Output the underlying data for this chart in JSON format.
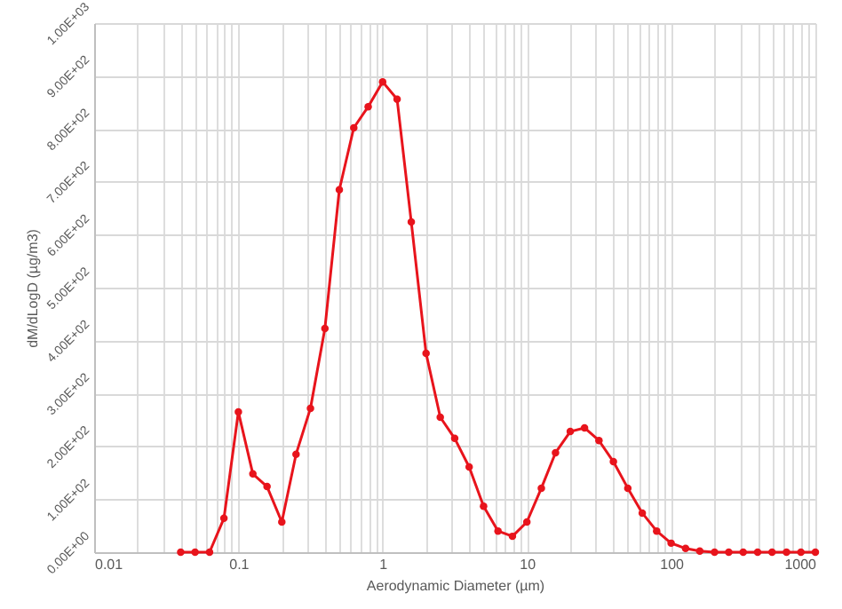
{
  "chart_data": {
    "type": "line",
    "xlabel": "Aerodynamic Diameter (µm)",
    "ylabel": "dM/dLogD (µg/m3)",
    "log": "x",
    "grid": true,
    "marker": "circle",
    "line_style": "solid",
    "x": [
      0.0398,
      0.0501,
      0.0631,
      0.0794,
      0.1,
      0.126,
      0.158,
      0.2,
      0.251,
      0.316,
      0.398,
      0.501,
      0.631,
      0.794,
      1,
      1.26,
      1.58,
      2,
      2.51,
      3.16,
      3.98,
      5.01,
      6.31,
      7.94,
      10,
      12.6,
      15.8,
      20,
      25.1,
      31.6,
      39.8,
      50.1,
      63.1,
      79.4,
      100,
      126,
      158,
      200,
      251,
      316,
      398,
      501,
      631,
      794,
      1000
    ],
    "series": [
      {
        "color": "#e8141c",
        "values": [
          0,
          0,
          0,
          64,
          265,
          148,
          124,
          57,
          185,
          272,
          423,
          685,
          802,
          842,
          889,
          856,
          624,
          376,
          255,
          215,
          161,
          87,
          40,
          30,
          57,
          121,
          188,
          228,
          235,
          211,
          171,
          121,
          74,
          40,
          17,
          7,
          2,
          0,
          0,
          0,
          0,
          0,
          0,
          0,
          0
        ]
      }
    ],
    "xlim": [
      0.01,
      1000
    ],
    "xticks": [
      0.01,
      {
        "value": 0.02,
        "label": null
      },
      {
        "value": 0.03,
        "label": null
      },
      {
        "value": 0.04,
        "label": null
      },
      {
        "value": 0.05,
        "label": null
      },
      {
        "value": 0.06,
        "label": null
      },
      {
        "value": 0.07,
        "label": null
      },
      {
        "value": 0.08,
        "label": null
      },
      {
        "value": 0.09,
        "label": null
      },
      0.1,
      {
        "value": 0.2,
        "label": null
      },
      {
        "value": 0.3,
        "label": null
      },
      {
        "value": 0.4,
        "label": null
      },
      {
        "value": 0.5,
        "label": null
      },
      {
        "value": 0.6,
        "label": null
      },
      {
        "value": 0.7,
        "label": null
      },
      {
        "value": 0.8,
        "label": null
      },
      {
        "value": 0.9,
        "label": null
      },
      1,
      {
        "value": 2,
        "label": null
      },
      {
        "value": 3,
        "label": null
      },
      {
        "value": 4,
        "label": null
      },
      {
        "value": 5,
        "label": null
      },
      {
        "value": 6,
        "label": null
      },
      {
        "value": 7,
        "label": null
      },
      {
        "value": 8,
        "label": null
      },
      {
        "value": 9,
        "label": null
      },
      10,
      {
        "value": 20,
        "label": null
      },
      {
        "value": 30,
        "label": null
      },
      {
        "value": 40,
        "label": null
      },
      {
        "value": 50,
        "label": null
      },
      {
        "value": 60,
        "label": null
      },
      {
        "value": 70,
        "label": null
      },
      {
        "value": 80,
        "label": null
      },
      {
        "value": 90,
        "label": null
      },
      100,
      {
        "value": 200,
        "label": null
      },
      {
        "value": 300,
        "label": null
      },
      {
        "value": 400,
        "label": null
      },
      {
        "value": 500,
        "label": null
      },
      {
        "value": 600,
        "label": null
      },
      {
        "value": 700,
        "label": null
      },
      {
        "value": 800,
        "label": null
      },
      {
        "value": 900,
        "label": null
      },
      1000
    ],
    "ylim": [
      0,
      1000
    ],
    "yticks": [
      {
        "value": 0,
        "label": "0.00E+00"
      },
      {
        "value": 100,
        "label": "1.00E+02"
      },
      {
        "value": 200,
        "label": "2.00E+02"
      },
      {
        "value": 300,
        "label": "3.00E+02"
      },
      {
        "value": 400,
        "label": "4.00E+02"
      },
      {
        "value": 500,
        "label": "5.00E+02"
      },
      {
        "value": 600,
        "label": "6.00E+02"
      },
      {
        "value": 700,
        "label": "7.00E+02"
      },
      {
        "value": 800,
        "label": "8.00E+02"
      },
      {
        "value": 900,
        "label": "9.00E+02"
      },
      {
        "value": 1000,
        "label": "1.00E+03"
      }
    ]
  }
}
